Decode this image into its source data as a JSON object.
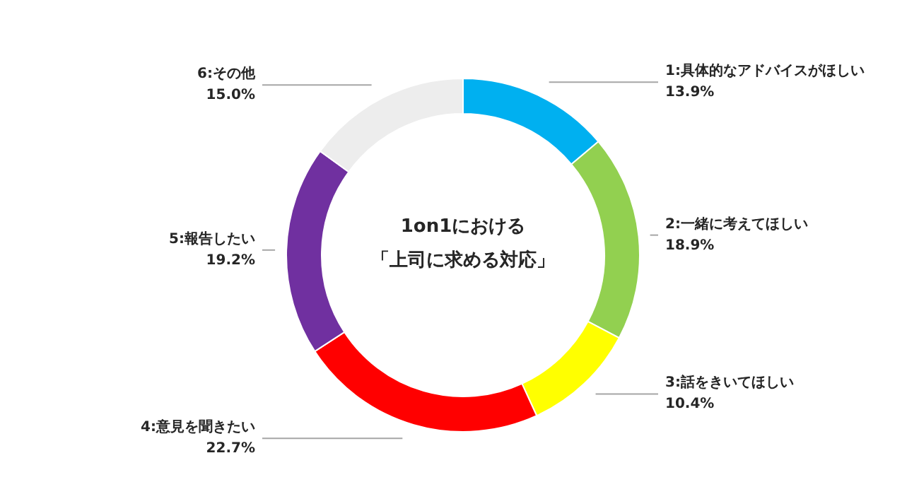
{
  "chart_data": {
    "type": "donut",
    "title": "1on1における",
    "subtitle": "「上司に求める対応」",
    "categories": [
      "1:具体的なアドバイスがほしい",
      "2:一緒に考えてほしい",
      "3:話をきいてほしい",
      "4:意見を聞きたい",
      "5:報告したい",
      "6:その他"
    ],
    "values": [
      13.9,
      18.9,
      10.4,
      22.7,
      19.2,
      15.0
    ],
    "value_labels": [
      "13.9%",
      "18.9%",
      "10.4%",
      "22.7%",
      "19.2%",
      "15.0%"
    ],
    "colors": [
      "#00b0f0",
      "#92d050",
      "#ffff00",
      "#ff0000",
      "#7030a0",
      "#ededed"
    ],
    "legend": false
  }
}
